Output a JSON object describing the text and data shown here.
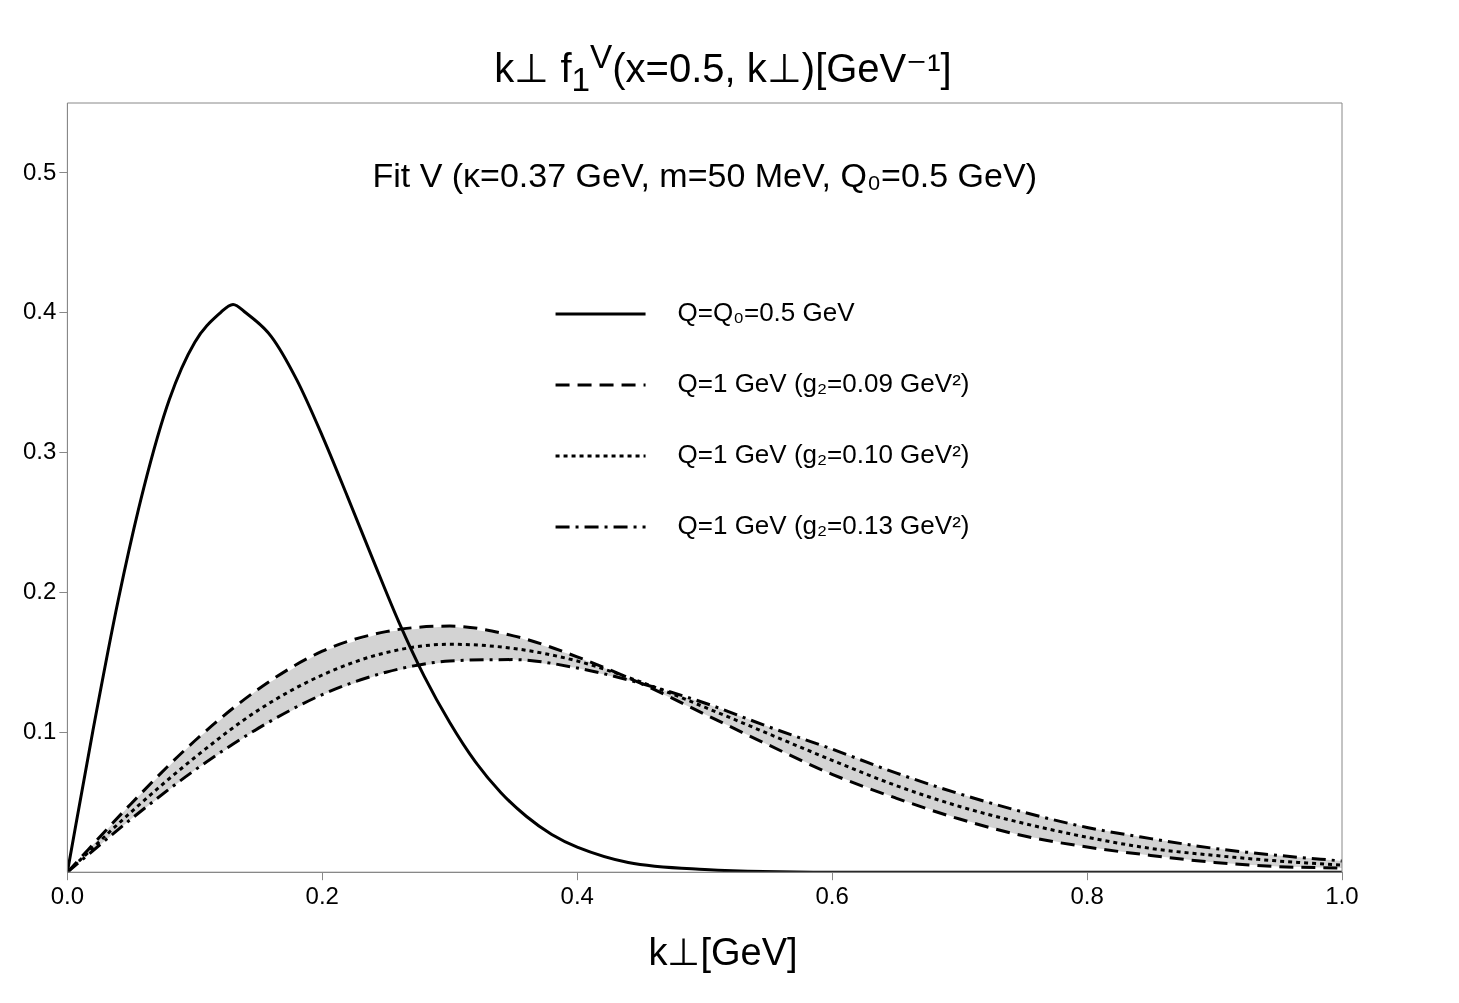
{
  "chart_data": {
    "type": "line",
    "title": "k⊥ f$_{1}$$^{V}$(x=0.5, k⊥)[GeV⁻¹]",
    "xlabel": "k⊥[GeV]",
    "annotations": [
      "Fit V (κ=0.37 GeV, m=50 MeV, Q₀=0.5 GeV)"
    ],
    "xlim": [
      0,
      1
    ],
    "xticks": [
      {
        "value": 0,
        "label": "0.0"
      },
      0.2,
      0.4,
      0.6,
      0.8,
      {
        "value": 1,
        "label": "1.0"
      }
    ],
    "ylim": [
      0,
      0.55
    ],
    "yticks": [
      0.1,
      0.2,
      0.3,
      0.4,
      0.5
    ],
    "grid": false,
    "legend": "top right",
    "marker": "none",
    "series": [
      {
        "name": "Q=Q₀=0.5 GeV",
        "color": "#000000",
        "line_style": "solid",
        "x": [
          0,
          0.02,
          0.04,
          0.06,
          0.08,
          0.1,
          0.12,
          0.13,
          0.14,
          0.16,
          0.18,
          0.2,
          0.22,
          0.24,
          0.26,
          0.28,
          0.3,
          0.32,
          0.34,
          0.36,
          0.38,
          0.4,
          0.44,
          0.5,
          0.6,
          0.8,
          1
        ],
        "values": [
          0,
          0.101,
          0.195,
          0.275,
          0.338,
          0.379,
          0.4,
          0.406,
          0.4,
          0.383,
          0.352,
          0.312,
          0.268,
          0.223,
          0.179,
          0.14,
          0.107,
          0.079,
          0.057,
          0.04,
          0.027,
          0.018,
          0.007,
          0.002,
          0,
          0,
          0
        ]
      },
      {
        "name": "Q=1 GeV (g₂=0.09 GeV²)",
        "color": "#000000",
        "line_style": "dashed",
        "x": [
          0,
          0.05,
          0.1,
          0.15,
          0.2,
          0.25,
          0.3,
          0.35,
          0.4,
          0.45,
          0.5,
          0.55,
          0.6,
          0.65,
          0.7,
          0.75,
          0.8,
          0.85,
          0.9,
          0.95,
          1
        ],
        "values": [
          0,
          0.049,
          0.094,
          0.131,
          0.158,
          0.172,
          0.176,
          0.169,
          0.154,
          0.135,
          0.113,
          0.091,
          0.07,
          0.053,
          0.038,
          0.026,
          0.018,
          0.012,
          0.007,
          0.004,
          0.003
        ]
      },
      {
        "name": "Q=1 GeV (g₂=0.10 GeV²)",
        "color": "#000000",
        "line_style": "dotted",
        "x": [
          0,
          0.05,
          0.1,
          0.15,
          0.2,
          0.25,
          0.3,
          0.35,
          0.4,
          0.45,
          0.5,
          0.55,
          0.6,
          0.65,
          0.7,
          0.75,
          0.8,
          0.85,
          0.9,
          0.95,
          1
        ],
        "values": [
          0,
          0.043,
          0.082,
          0.116,
          0.141,
          0.157,
          0.163,
          0.16,
          0.151,
          0.136,
          0.118,
          0.099,
          0.08,
          0.062,
          0.047,
          0.035,
          0.025,
          0.017,
          0.012,
          0.008,
          0.005
        ],
        "lower": [
          0,
          0.038,
          0.073,
          0.103,
          0.127,
          0.143,
          0.151,
          0.152,
          0.146,
          0.135,
          0.113,
          0.091,
          0.07,
          0.053,
          0.038,
          0.026,
          0.018,
          0.012,
          0.007,
          0.004,
          0.003
        ],
        "upper": [
          0,
          0.049,
          0.094,
          0.131,
          0.158,
          0.172,
          0.176,
          0.169,
          0.154,
          0.135,
          0.121,
          0.104,
          0.088,
          0.071,
          0.056,
          0.043,
          0.032,
          0.024,
          0.017,
          0.012,
          0.008
        ]
      },
      {
        "name": "Q=1 GeV (g₂=0.13 GeV²)",
        "color": "#000000",
        "line_style": "dashdot",
        "x": [
          0,
          0.05,
          0.1,
          0.15,
          0.2,
          0.25,
          0.3,
          0.35,
          0.4,
          0.45,
          0.5,
          0.55,
          0.6,
          0.65,
          0.7,
          0.75,
          0.8,
          0.85,
          0.9,
          0.95,
          1
        ],
        "values": [
          0,
          0.038,
          0.073,
          0.103,
          0.127,
          0.143,
          0.151,
          0.152,
          0.146,
          0.135,
          0.121,
          0.104,
          0.088,
          0.071,
          0.056,
          0.043,
          0.032,
          0.024,
          0.017,
          0.012,
          0.008
        ]
      }
    ]
  }
}
